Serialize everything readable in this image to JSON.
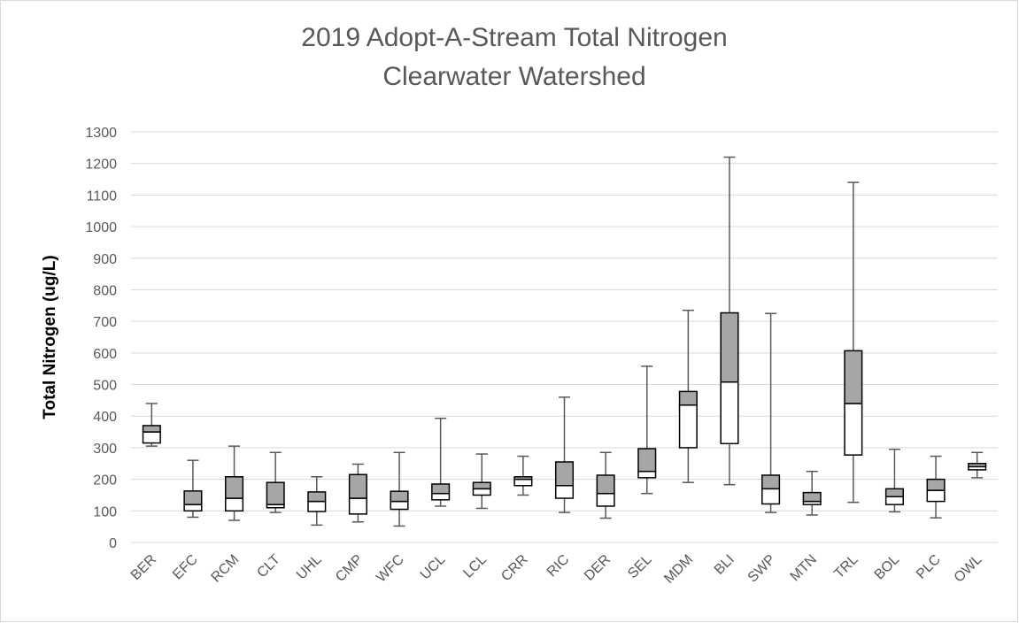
{
  "chart_data": {
    "type": "box",
    "title": "2019 Adopt-A-Stream Total Nitrogen",
    "subtitle": "Clearwater Watershed",
    "y_label": "Total Nitrogen (ug/L)",
    "categories": [
      "BER",
      "EFC",
      "RCM",
      "CLT",
      "UHL",
      "CMP",
      "WFC",
      "UCL",
      "LCL",
      "CRR",
      "RIC",
      "DER",
      "SEL",
      "MDM",
      "BLI",
      "SWP",
      "MTN",
      "TRL",
      "BOL",
      "PLC",
      "OWL"
    ],
    "min": [
      305,
      80,
      70,
      95,
      55,
      65,
      52,
      115,
      108,
      150,
      95,
      77,
      155,
      190,
      183,
      95,
      87,
      127,
      97,
      78,
      205
    ],
    "q1": [
      315,
      100,
      100,
      110,
      98,
      90,
      105,
      135,
      150,
      180,
      140,
      115,
      205,
      300,
      313,
      122,
      120,
      277,
      120,
      130,
      230
    ],
    "median": [
      350,
      120,
      140,
      120,
      130,
      140,
      130,
      155,
      170,
      200,
      180,
      155,
      225,
      435,
      508,
      170,
      130,
      440,
      145,
      165,
      240
    ],
    "q3": [
      370,
      163,
      208,
      190,
      160,
      215,
      162,
      185,
      190,
      208,
      255,
      213,
      297,
      478,
      727,
      213,
      158,
      607,
      170,
      200,
      250
    ],
    "max": [
      440,
      260,
      305,
      285,
      208,
      248,
      285,
      393,
      280,
      273,
      460,
      285,
      558,
      735,
      1220,
      725,
      225,
      1140,
      295,
      273,
      285
    ],
    "upper_color": "#a6a6a6",
    "lower_color": "#ffffff",
    "ylim": [
      0,
      1300
    ],
    "yticks": [
      0,
      100,
      200,
      300,
      400,
      500,
      600,
      700,
      800,
      900,
      1000,
      1100,
      1200,
      1300
    ],
    "grid": true
  }
}
